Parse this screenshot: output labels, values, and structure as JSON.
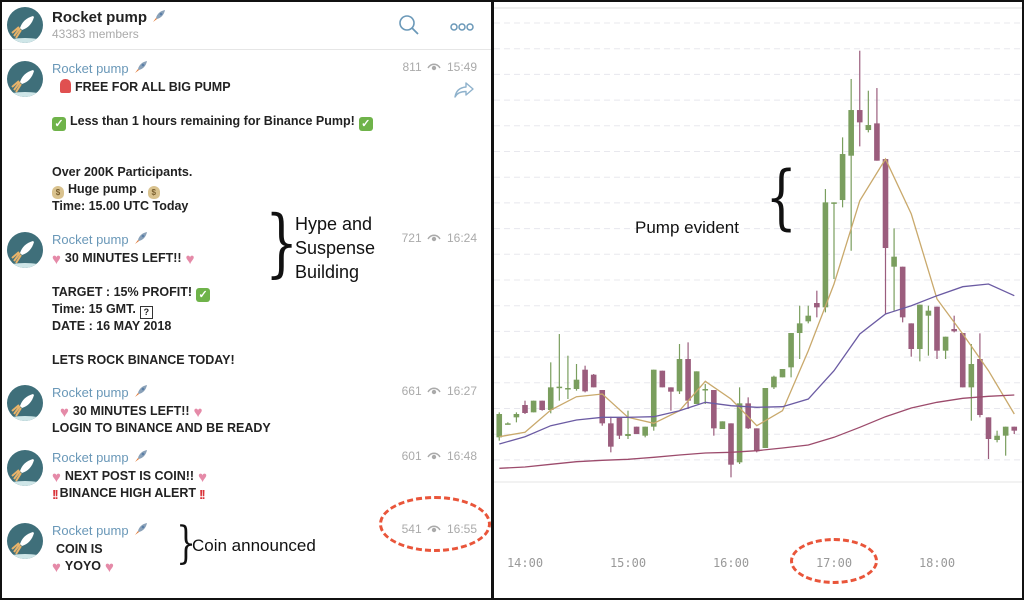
{
  "header": {
    "title": "Rocket pump",
    "members": "43383 members",
    "search_icon": "search-icon",
    "more_icon": "more-icon"
  },
  "messages": [
    {
      "name": "Rocket pump",
      "views": "811",
      "time": "15:49",
      "forward": true,
      "lines": [
        {
          "pre": "siren",
          "text": "FREE FOR ALL BIG PUMP",
          "indent": true
        },
        {
          "text": ""
        },
        {
          "pre": "check",
          "text": "Less than 1 hours remaining for Binance Pump!",
          "post": "check"
        },
        {
          "text": ""
        },
        {
          "text": ""
        },
        {
          "text": "Over 200K Participants."
        },
        {
          "pre": "moneybag",
          "text": "Huge pump .",
          "post": "moneybag"
        },
        {
          "text": "Time: 15.00 UTC Today"
        }
      ]
    },
    {
      "name": "Rocket pump",
      "views": "721",
      "time": "16:24",
      "lines": [
        {
          "pre": "heart",
          "text": "30 MINUTES LEFT!!",
          "post": "heart"
        },
        {
          "text": ""
        },
        {
          "text": "TARGET : 15% PROFIT!",
          "post": "check"
        },
        {
          "text": "Time: 15 GMT.",
          "post": "question"
        },
        {
          "text": "DATE : 16 MAY 2018"
        },
        {
          "text": ""
        },
        {
          "text": "LETS ROCK BINANCE TODAY!"
        }
      ]
    },
    {
      "name": "Rocket pump",
      "views": "661",
      "time": "16:27",
      "lines": [
        {
          "pre": "heart",
          "text": "30 MINUTES LEFT!!",
          "post": "heart",
          "indent": true
        },
        {
          "text": "LOGIN TO BINANCE AND BE READY"
        }
      ]
    },
    {
      "name": "Rocket pump",
      "views": "601",
      "time": "16:48",
      "lines": [
        {
          "pre": "heart",
          "text": "NEXT POST IS COIN!!",
          "post": "heart"
        },
        {
          "pre": "bang",
          "text": "BINANCE HIGH ALERT",
          "post": "bang"
        }
      ]
    },
    {
      "name": "Rocket pump",
      "views": "541",
      "time": "16:55",
      "lines": [
        {
          "text": "COIN IS",
          "indent": true
        },
        {
          "pre": "heart",
          "text": "YOYO",
          "post": "heart"
        }
      ]
    }
  ],
  "annotations": {
    "hype": [
      "Hype and",
      "Suspense",
      "Building"
    ],
    "coin": "Coin announced",
    "pump": "Pump evident"
  },
  "colors": {
    "up": "#7a9e5e",
    "down": "#9b5d7d",
    "ma_fast": "#c9a96c",
    "ma_mid": "#6b5ba3",
    "ma_slow": "#9c4b6c",
    "highlight": "#e9553a",
    "name": "#6a98b8"
  },
  "chart_data": {
    "type": "candlestick",
    "xlabel": "",
    "ylabel": "",
    "x_ticks": [
      "14:00",
      "15:00",
      "16:00",
      "17:00",
      "18:00"
    ],
    "y_ticks_labeled": false,
    "grid": "horizontal dashed",
    "candles": [
      [
        "13:45",
        14,
        21.5,
        13,
        21
      ],
      [
        "13:50",
        18.2,
        18.5,
        18,
        18.2
      ],
      [
        "13:55",
        20,
        21.5,
        18.5,
        21
      ],
      [
        "14:00",
        23.7,
        25,
        21,
        21.3
      ],
      [
        "14:05",
        21.5,
        25,
        21.5,
        25
      ],
      [
        "14:10",
        25,
        25,
        22,
        22.2
      ],
      [
        "14:15",
        22.2,
        36.5,
        21.2,
        29
      ],
      [
        "14:20",
        29,
        45,
        25,
        29.2
      ],
      [
        "14:25",
        28.8,
        38.5,
        25.5,
        28.8
      ],
      [
        "14:30",
        28.5,
        36,
        28,
        31.3
      ],
      [
        "14:35",
        34.3,
        35.5,
        27.5,
        27.8
      ],
      [
        "14:40",
        32.8,
        33,
        29,
        29
      ],
      [
        "14:45",
        28.2,
        28.2,
        17.5,
        18.2
      ],
      [
        "14:50",
        18.2,
        20.2,
        9.5,
        11.2
      ],
      [
        "14:55",
        20,
        20,
        13.5,
        14.5
      ],
      [
        "15:00",
        14.4,
        22,
        13.5,
        15
      ],
      [
        "15:05",
        17.2,
        17.2,
        15,
        15
      ],
      [
        "15:10",
        14.5,
        17.2,
        14,
        17.2
      ],
      [
        "15:15",
        17.2,
        34.3,
        16,
        34.3
      ],
      [
        "15:20",
        34,
        34,
        29,
        29
      ],
      [
        "15:25",
        29,
        29,
        22,
        27.7
      ],
      [
        "15:30",
        27.8,
        42,
        27,
        37.5
      ],
      [
        "15:35",
        37.5,
        42.5,
        22.5,
        25
      ],
      [
        "15:40",
        24,
        33.8,
        24,
        33.8
      ],
      [
        "15:45",
        28.5,
        30,
        24,
        28.5
      ],
      [
        "15:50",
        28.2,
        28.2,
        14.5,
        16.7
      ],
      [
        "15:55",
        16.5,
        18.8,
        16.5,
        18.8
      ],
      [
        "16:00",
        18.2,
        18.2,
        2,
        5.8
      ],
      [
        "16:05",
        6.5,
        29,
        6,
        24.2
      ],
      [
        "16:10",
        24.2,
        26,
        16.5,
        16.7
      ],
      [
        "16:15",
        16.7,
        16.7,
        9.5,
        9.8
      ],
      [
        "16:20",
        10.8,
        28.8,
        10.8,
        28.8
      ],
      [
        "16:25",
        29,
        32.5,
        28.5,
        32.2
      ],
      [
        "16:30",
        32,
        34.5,
        32,
        34.5
      ],
      [
        "16:35",
        35,
        45.3,
        32,
        45.3
      ],
      [
        "16:40",
        45.3,
        53.5,
        37.5,
        48.2
      ],
      [
        "16:45",
        48.8,
        53.5,
        48.2,
        50.5
      ],
      [
        "16:50",
        54.3,
        58,
        50,
        53
      ],
      [
        "16:55",
        53,
        88.5,
        51.5,
        84.5
      ],
      [
        "17:00",
        84.5,
        84.5,
        61.5,
        84.5
      ],
      [
        "17:05",
        85.2,
        104,
        83,
        99
      ],
      [
        "17:10",
        98.5,
        121.5,
        70,
        112.2
      ],
      [
        "17:15",
        112.2,
        130,
        101.3,
        108.5
      ],
      [
        "17:20",
        106.2,
        118,
        105.5,
        107.7
      ],
      [
        "17:25",
        108.2,
        118.8,
        97,
        97
      ],
      [
        "17:30",
        97.5,
        97.5,
        51,
        70.8
      ],
      [
        "17:35",
        65.2,
        76.7,
        52,
        68.2
      ],
      [
        "17:40",
        65.2,
        65.2,
        48.5,
        50
      ],
      [
        "17:45",
        48.2,
        48.2,
        38.2,
        40.5
      ],
      [
        "17:50",
        40.5,
        53.8,
        36.8,
        53.8
      ],
      [
        "17:55",
        50.5,
        53.5,
        38.5,
        52
      ],
      [
        "18:00",
        53.2,
        53.2,
        37.5,
        40
      ],
      [
        "18:05",
        40,
        44.2,
        37.5,
        44.2
      ],
      [
        "18:10",
        46.5,
        50.5,
        45.5,
        45.8
      ],
      [
        "18:15",
        45.3,
        45.3,
        29,
        29
      ],
      [
        "18:20",
        29,
        42,
        19,
        36
      ],
      [
        "18:25",
        37.5,
        45.2,
        20,
        20.7
      ],
      [
        "18:30",
        20,
        20,
        7.5,
        13.5
      ],
      [
        "18:35",
        13.2,
        16,
        12.5,
        14.5
      ],
      [
        "18:40",
        14.5,
        17.2,
        8.5,
        17.2
      ],
      [
        "18:45",
        17.2,
        17.2,
        15,
        16
      ]
    ],
    "moving_averages": {
      "times": [
        "13:45",
        "14:00",
        "14:15",
        "14:30",
        "14:45",
        "15:00",
        "15:15",
        "15:30",
        "15:45",
        "16:00",
        "16:15",
        "16:30",
        "16:45",
        "17:00",
        "17:15",
        "17:30",
        "17:45",
        "18:00",
        "18:15",
        "18:30",
        "18:45"
      ],
      "fast": [
        14.2,
        15.5,
        22.2,
        26.2,
        27,
        20,
        18.2,
        22,
        30.8,
        25.5,
        17.5,
        22,
        40,
        60,
        85,
        97.5,
        81,
        55.5,
        45,
        34,
        21
      ],
      "mid": [
        12,
        14.2,
        17.5,
        19.2,
        20,
        20,
        20.2,
        22,
        24.5,
        23.5,
        23,
        23.2,
        25.5,
        34,
        45,
        51,
        53.5,
        56.5,
        59.2,
        60,
        56.5
      ],
      "slow": [
        4.7,
        5.1,
        5.9,
        6.7,
        7.1,
        7.4,
        8,
        8.7,
        9.3,
        9.5,
        10,
        10.8,
        11.7,
        14,
        17,
        20.2,
        22.8,
        24.5,
        25.7,
        26.3,
        26.7
      ]
    }
  }
}
